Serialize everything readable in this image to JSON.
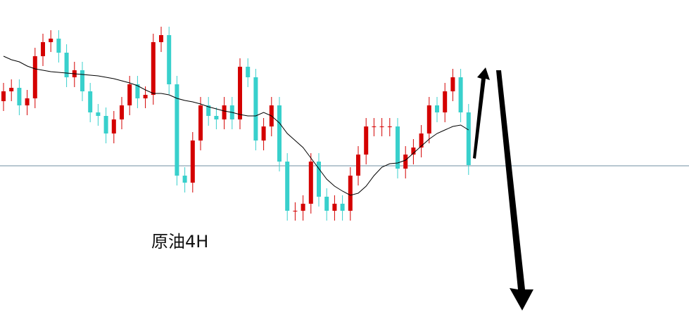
{
  "chart_data": {
    "type": "candlestick",
    "title": "原油4H",
    "up_color": "#d40000",
    "down_color": "#38d0cc",
    "ma_color": "#000000",
    "ylim": [
      0,
      474
    ],
    "hline": {
      "value": 238,
      "color": "#6f8fa0"
    },
    "open": [
      330,
      344,
      349,
      324,
      334,
      394,
      414,
      419,
      399,
      364,
      374,
      344,
      314,
      309,
      284,
      304,
      324,
      354,
      334,
      339,
      414,
      424,
      354,
      224,
      214,
      274,
      324,
      309,
      304,
      324,
      304,
      379,
      364,
      274,
      294,
      324,
      244,
      174,
      174,
      184,
      244,
      194,
      174,
      184,
      174,
      224,
      254,
      294,
      294,
      294,
      294,
      234,
      254,
      264,
      284,
      324,
      314,
      344,
      364,
      314
    ],
    "high": [
      356,
      361,
      361,
      346,
      406,
      426,
      431,
      431,
      411,
      386,
      386,
      356,
      326,
      321,
      316,
      336,
      366,
      366,
      351,
      426,
      436,
      436,
      366,
      236,
      286,
      336,
      336,
      321,
      336,
      336,
      391,
      391,
      376,
      306,
      336,
      336,
      256,
      186,
      196,
      256,
      256,
      206,
      196,
      196,
      236,
      266,
      306,
      306,
      306,
      306,
      306,
      266,
      276,
      296,
      336,
      336,
      356,
      376,
      376,
      326
    ],
    "low": [
      316,
      330,
      310,
      310,
      320,
      380,
      400,
      385,
      350,
      350,
      330,
      300,
      295,
      270,
      270,
      290,
      310,
      320,
      320,
      325,
      400,
      340,
      210,
      200,
      200,
      260,
      295,
      290,
      290,
      290,
      290,
      350,
      260,
      260,
      280,
      230,
      160,
      160,
      160,
      170,
      180,
      160,
      160,
      160,
      160,
      210,
      240,
      280,
      280,
      280,
      220,
      220,
      240,
      250,
      270,
      300,
      300,
      330,
      300,
      225
    ],
    "close": [
      344,
      349,
      324,
      334,
      394,
      414,
      419,
      399,
      364,
      374,
      344,
      314,
      309,
      284,
      304,
      324,
      354,
      334,
      339,
      414,
      424,
      354,
      224,
      214,
      274,
      324,
      309,
      304,
      324,
      304,
      379,
      364,
      274,
      294,
      324,
      244,
      174,
      174,
      184,
      244,
      194,
      174,
      184,
      174,
      224,
      254,
      294,
      294,
      294,
      294,
      234,
      254,
      264,
      284,
      324,
      314,
      344,
      364,
      314,
      239
    ],
    "ma_values": [
      394,
      389,
      386,
      380,
      376,
      374,
      372,
      371,
      370,
      369,
      368,
      367,
      366,
      364,
      362,
      359,
      356,
      352,
      346,
      341,
      341,
      339,
      334,
      331,
      329,
      326,
      322,
      319,
      316,
      314,
      311,
      309,
      309,
      314,
      309,
      299,
      284,
      274,
      264,
      249,
      234,
      219,
      209,
      202,
      196,
      199,
      209,
      224,
      236,
      241,
      242,
      246,
      256,
      266,
      276,
      284,
      289,
      294,
      296,
      289
    ]
  }
}
